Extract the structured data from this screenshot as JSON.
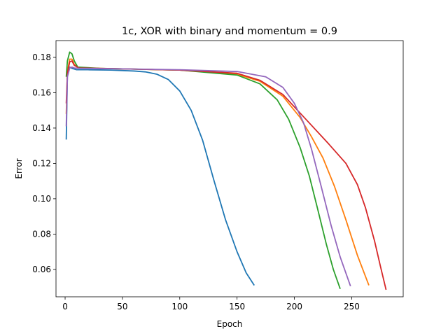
{
  "chart_data": {
    "type": "line",
    "title": "1c, XOR with binary and momentum = 0.9",
    "xlabel": "Epoch",
    "ylabel": "Error",
    "xlim": [
      -7.95,
      294.95
    ],
    "ylim": [
      0.0445,
      0.1895
    ],
    "xticks": [
      0,
      50,
      100,
      150,
      200,
      250
    ],
    "yticks": [
      0.06,
      0.08,
      0.1,
      0.12,
      0.14,
      0.16,
      0.18
    ],
    "ytick_labels": [
      "0.06",
      "0.08",
      "0.10",
      "0.12",
      "0.14",
      "0.16",
      "0.18"
    ],
    "grid": false,
    "legend": "none",
    "series": [
      {
        "color": "#1f77b4",
        "points": [
          [
            1,
            0.1335
          ],
          [
            2,
            0.17
          ],
          [
            4,
            0.1745
          ],
          [
            6,
            0.1738
          ],
          [
            10,
            0.173
          ],
          [
            20,
            0.173
          ],
          [
            40,
            0.1728
          ],
          [
            60,
            0.1723
          ],
          [
            70,
            0.1718
          ],
          [
            80,
            0.1705
          ],
          [
            90,
            0.1675
          ],
          [
            100,
            0.161
          ],
          [
            110,
            0.15
          ],
          [
            120,
            0.133
          ],
          [
            130,
            0.11
          ],
          [
            140,
            0.088
          ],
          [
            150,
            0.07
          ],
          [
            158,
            0.058
          ],
          [
            165,
            0.051
          ]
        ]
      },
      {
        "color": "#ff7f0e",
        "points": [
          [
            1,
            0.148
          ],
          [
            2,
            0.172
          ],
          [
            4,
            0.179
          ],
          [
            6,
            0.179
          ],
          [
            8,
            0.176
          ],
          [
            12,
            0.174
          ],
          [
            50,
            0.1735
          ],
          [
            100,
            0.1728
          ],
          [
            150,
            0.1705
          ],
          [
            170,
            0.1665
          ],
          [
            190,
            0.158
          ],
          [
            205,
            0.146
          ],
          [
            215,
            0.135
          ],
          [
            225,
            0.123
          ],
          [
            235,
            0.107
          ],
          [
            245,
            0.088
          ],
          [
            255,
            0.068
          ],
          [
            265,
            0.051
          ]
        ]
      },
      {
        "color": "#2ca02c",
        "points": [
          [
            1,
            0.169
          ],
          [
            2,
            0.178
          ],
          [
            4,
            0.183
          ],
          [
            6,
            0.182
          ],
          [
            8,
            0.178
          ],
          [
            11,
            0.1745
          ],
          [
            30,
            0.1738
          ],
          [
            100,
            0.1728
          ],
          [
            150,
            0.17
          ],
          [
            170,
            0.165
          ],
          [
            185,
            0.156
          ],
          [
            195,
            0.145
          ],
          [
            205,
            0.129
          ],
          [
            213,
            0.113
          ],
          [
            220,
            0.095
          ],
          [
            228,
            0.074
          ],
          [
            234,
            0.06
          ],
          [
            240,
            0.049
          ]
        ]
      },
      {
        "color": "#d62728",
        "points": [
          [
            1,
            0.154
          ],
          [
            2,
            0.171
          ],
          [
            4,
            0.1775
          ],
          [
            6,
            0.178
          ],
          [
            8,
            0.1755
          ],
          [
            12,
            0.174
          ],
          [
            50,
            0.1735
          ],
          [
            100,
            0.1728
          ],
          [
            150,
            0.171
          ],
          [
            170,
            0.167
          ],
          [
            190,
            0.159
          ],
          [
            210,
            0.145
          ],
          [
            230,
            0.131
          ],
          [
            245,
            0.12
          ],
          [
            255,
            0.108
          ],
          [
            262,
            0.095
          ],
          [
            270,
            0.076
          ],
          [
            275,
            0.062
          ],
          [
            280,
            0.0485
          ]
        ]
      },
      {
        "color": "#9467bd",
        "points": [
          [
            1,
            0.141
          ],
          [
            2,
            0.169
          ],
          [
            4,
            0.174
          ],
          [
            6,
            0.1745
          ],
          [
            8,
            0.174
          ],
          [
            12,
            0.1738
          ],
          [
            50,
            0.1735
          ],
          [
            100,
            0.173
          ],
          [
            150,
            0.172
          ],
          [
            175,
            0.169
          ],
          [
            190,
            0.163
          ],
          [
            200,
            0.154
          ],
          [
            208,
            0.143
          ],
          [
            215,
            0.128
          ],
          [
            223,
            0.108
          ],
          [
            232,
            0.085
          ],
          [
            240,
            0.067
          ],
          [
            249,
            0.0505
          ]
        ]
      }
    ]
  }
}
